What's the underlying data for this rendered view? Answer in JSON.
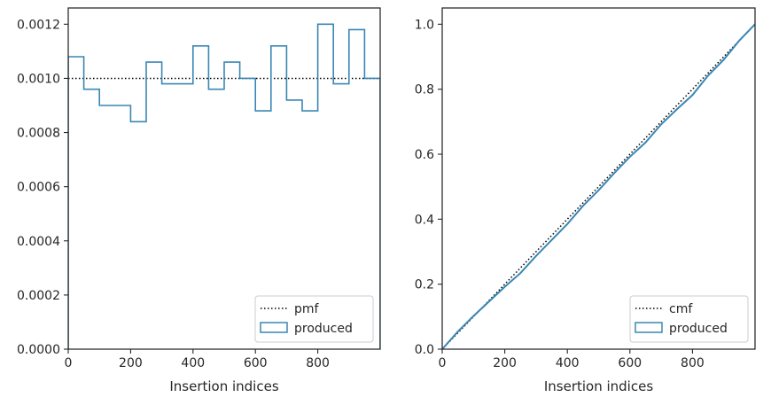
{
  "chart_data": [
    {
      "type": "line",
      "xlabel": "Insertion indices",
      "ylabel": "",
      "xlim": [
        0,
        1000
      ],
      "ylim": [
        0,
        0.00126
      ],
      "x_ticks": [
        0,
        200,
        400,
        600,
        800
      ],
      "x_tick_labels": [
        "0",
        "200",
        "400",
        "600",
        "800"
      ],
      "y_ticks": [
        0,
        0.0002,
        0.0004,
        0.0006,
        0.0008,
        0.001,
        0.0012
      ],
      "y_tick_labels": [
        "0.0000",
        "0.0002",
        "0.0004",
        "0.0006",
        "0.0008",
        "0.0010",
        "0.0012"
      ],
      "grid": false,
      "legend_position": "bottom-right",
      "series": [
        {
          "name": "pmf",
          "style": "dotted",
          "color": "#000000",
          "x": [
            0,
            1000
          ],
          "y": [
            0.001,
            0.001
          ]
        },
        {
          "name": "produced",
          "style": "step",
          "color": "#3a87b4",
          "bin_edges": [
            0,
            50,
            100,
            150,
            200,
            250,
            300,
            350,
            400,
            450,
            500,
            550,
            600,
            650,
            700,
            750,
            800,
            850,
            900,
            950,
            1000
          ],
          "values": [
            0.00108,
            0.00096,
            0.0009,
            0.0009,
            0.00084,
            0.00106,
            0.00098,
            0.00098,
            0.00112,
            0.00096,
            0.00106,
            0.001,
            0.00088,
            0.00112,
            0.00092,
            0.00088,
            0.0012,
            0.00098,
            0.00118,
            0.001
          ]
        }
      ]
    },
    {
      "type": "line",
      "xlabel": "Insertion indices",
      "ylabel": "",
      "xlim": [
        0,
        1000
      ],
      "ylim": [
        0,
        1.05
      ],
      "x_ticks": [
        0,
        200,
        400,
        600,
        800
      ],
      "x_tick_labels": [
        "0",
        "200",
        "400",
        "600",
        "800"
      ],
      "y_ticks": [
        0,
        0.2,
        0.4,
        0.6,
        0.8,
        1.0
      ],
      "y_tick_labels": [
        "0.0",
        "0.2",
        "0.4",
        "0.6",
        "0.8",
        "1.0"
      ],
      "grid": false,
      "legend_position": "bottom-right",
      "series": [
        {
          "name": "cmf",
          "style": "dotted",
          "color": "#000000",
          "x": [
            0,
            1000
          ],
          "y": [
            0,
            1
          ]
        },
        {
          "name": "produced",
          "style": "line",
          "color": "#3a87b4",
          "x": [
            0,
            50,
            100,
            150,
            200,
            250,
            300,
            350,
            400,
            450,
            500,
            550,
            600,
            650,
            700,
            750,
            800,
            850,
            900,
            950,
            1000
          ],
          "y": [
            0,
            0.054,
            0.102,
            0.147,
            0.192,
            0.234,
            0.287,
            0.336,
            0.385,
            0.441,
            0.489,
            0.542,
            0.592,
            0.636,
            0.692,
            0.738,
            0.782,
            0.842,
            0.891,
            0.95,
            1.0
          ]
        }
      ]
    }
  ]
}
